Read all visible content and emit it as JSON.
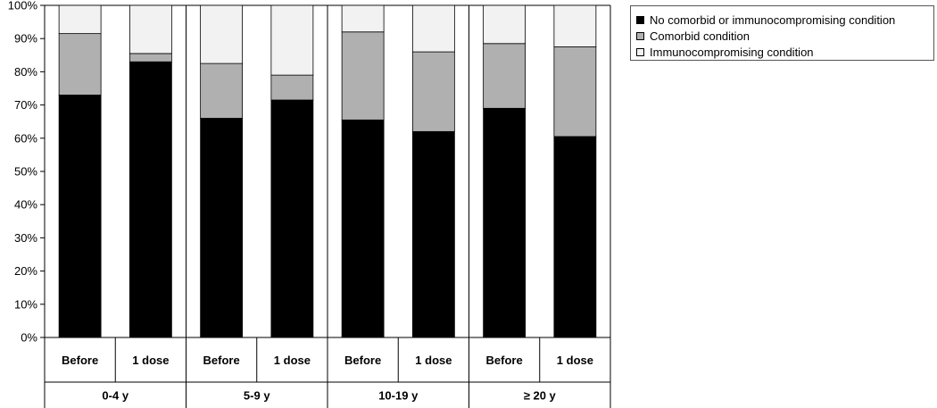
{
  "chart_data": {
    "type": "bar",
    "stacked": true,
    "groups": [
      {
        "label": "0-4 y",
        "bars": [
          "Before",
          "1 dose"
        ]
      },
      {
        "label": "5-9 y",
        "bars": [
          "Before",
          "1 dose"
        ]
      },
      {
        "label": "10-19 y",
        "bars": [
          "Before",
          "1 dose"
        ]
      },
      {
        "label": "≥ 20 y",
        "bars": [
          "Before",
          "1 dose"
        ]
      }
    ],
    "categories": [
      "Before",
      "1 dose",
      "Before",
      "1 dose",
      "Before",
      "1 dose",
      "Before",
      "1 dose"
    ],
    "series": [
      {
        "name": "No comorbid or immunocompromising condition",
        "color": "#000000",
        "values": [
          73,
          83,
          66,
          71.5,
          65.5,
          62,
          69,
          60.5
        ]
      },
      {
        "name": "Comorbid condition",
        "color": "#b0b0b0",
        "values": [
          18.5,
          2.5,
          16.5,
          7.5,
          26.5,
          24,
          19.5,
          27
        ]
      },
      {
        "name": "Immunocompromising condition",
        "color": "#f2f2f2",
        "values": [
          8.5,
          14.5,
          17.5,
          21,
          8,
          14,
          11.5,
          12.5
        ]
      }
    ],
    "yticks": [
      "0%",
      "10%",
      "20%",
      "30%",
      "40%",
      "50%",
      "60%",
      "70%",
      "80%",
      "90%",
      "100%"
    ],
    "ylim": [
      0,
      100
    ],
    "legend_position": "top-right",
    "grid": false
  }
}
